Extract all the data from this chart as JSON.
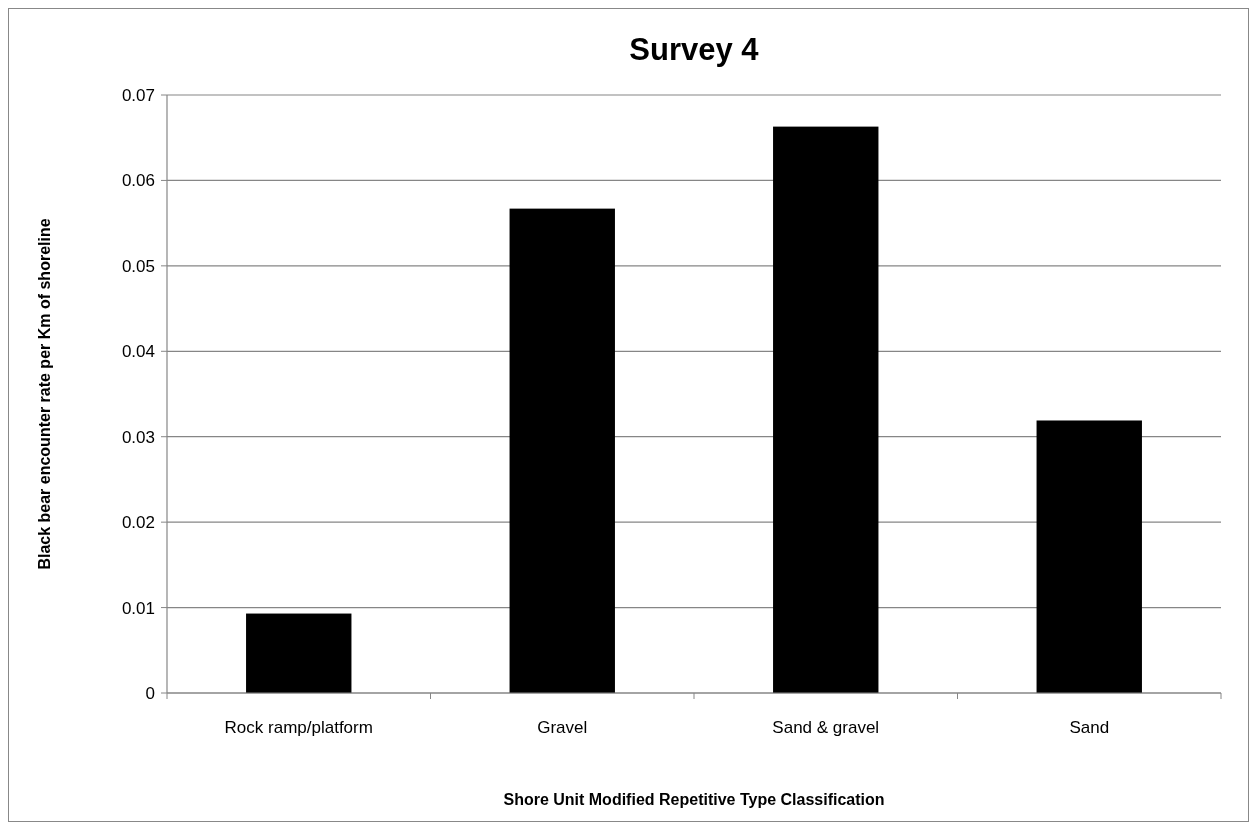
{
  "chart_data": {
    "type": "bar",
    "title": "Survey 4",
    "xlabel": "Shore Unit Modified Repetitive Type Classification",
    "ylabel": "Black bear encounter rate per Km of shoreline",
    "categories": [
      "Rock ramp/platform",
      "Gravel",
      "Sand & gravel",
      "Sand"
    ],
    "values": [
      0.0093,
      0.0567,
      0.0663,
      0.0319
    ],
    "color": "#000000",
    "ylim": [
      0,
      0.07
    ],
    "yticks": [
      0,
      0.01,
      0.02,
      0.03,
      0.04,
      0.05,
      0.06,
      0.07
    ],
    "grid": "y"
  }
}
